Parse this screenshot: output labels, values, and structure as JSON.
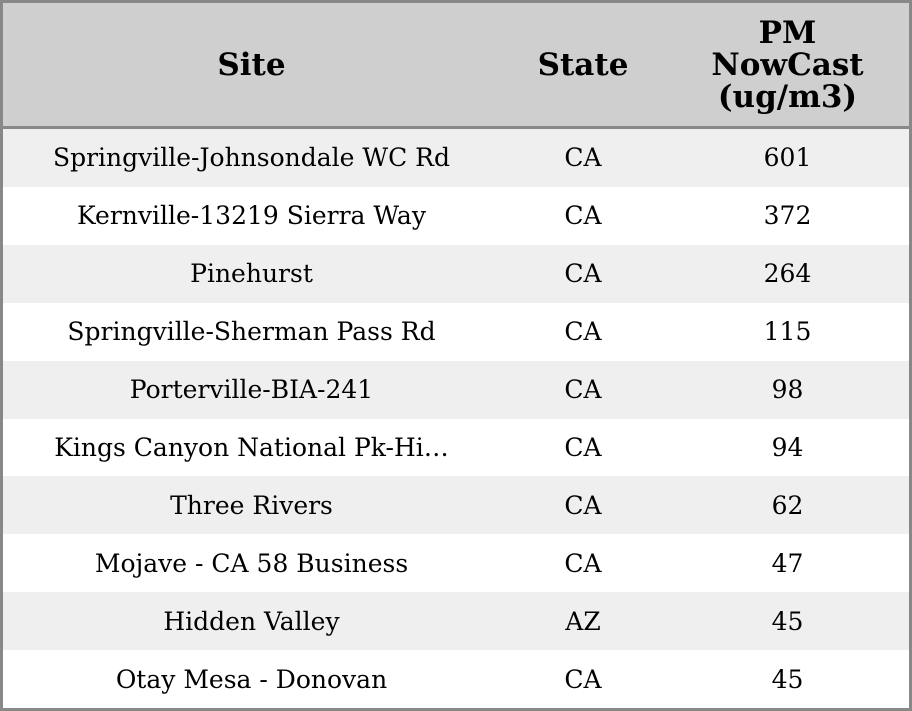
{
  "table": {
    "columns": [
      "Site",
      "State",
      "PM\nNowCast\n(ug/m3)"
    ],
    "rows": [
      [
        "Springville-Johnsondale WC Rd",
        "CA",
        601
      ],
      [
        "Kernville-13219 Sierra Way",
        "CA",
        372
      ],
      [
        "Pinehurst",
        "CA",
        264
      ],
      [
        "Springville-Sherman Pass Rd",
        "CA",
        115
      ],
      [
        "Porterville-BIA-241",
        "CA",
        98
      ],
      [
        "Kings Canyon National Pk-Hi…",
        "CA",
        94
      ],
      [
        "Three Rivers",
        "CA",
        62
      ],
      [
        "Mojave - CA 58 Business",
        "CA",
        47
      ],
      [
        "Hidden Valley",
        "AZ",
        45
      ],
      [
        "Otay Mesa - Donovan",
        "CA",
        45
      ]
    ]
  }
}
